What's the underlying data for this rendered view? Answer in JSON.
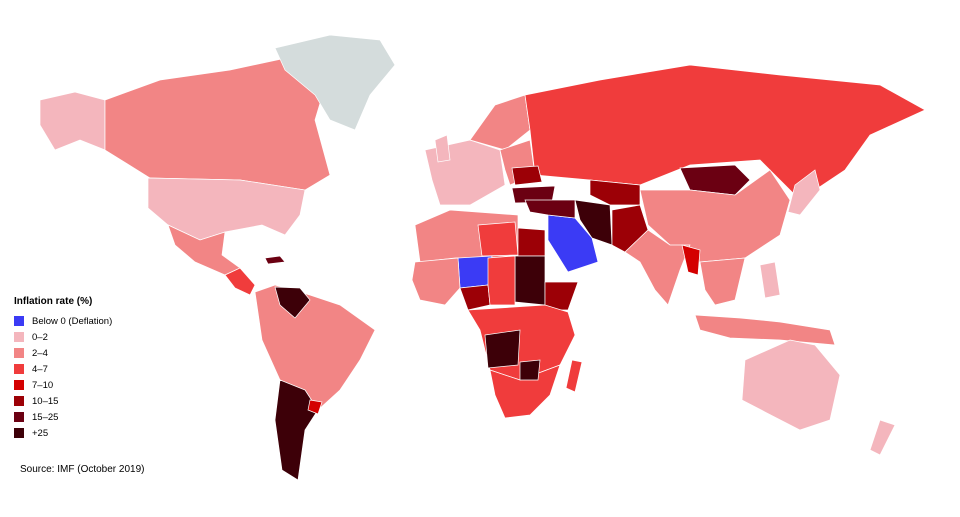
{
  "legend": {
    "title": "Inflation rate (%)",
    "items": [
      {
        "label": "Below 0 (Deflation)",
        "color": "#3b3bf5"
      },
      {
        "label": "0–2",
        "color": "#f4b6bd"
      },
      {
        "label": "2–4",
        "color": "#f28585"
      },
      {
        "label": "4–7",
        "color": "#f03c3c"
      },
      {
        "label": "7–10",
        "color": "#d40000"
      },
      {
        "label": "10–15",
        "color": "#9c0006"
      },
      {
        "label": "15–25",
        "color": "#6b0012"
      },
      {
        "label": "+25",
        "color": "#3d0008"
      }
    ],
    "no_data_color": "#d4dcdc"
  },
  "source": "Source: IMF (October 2019)"
}
